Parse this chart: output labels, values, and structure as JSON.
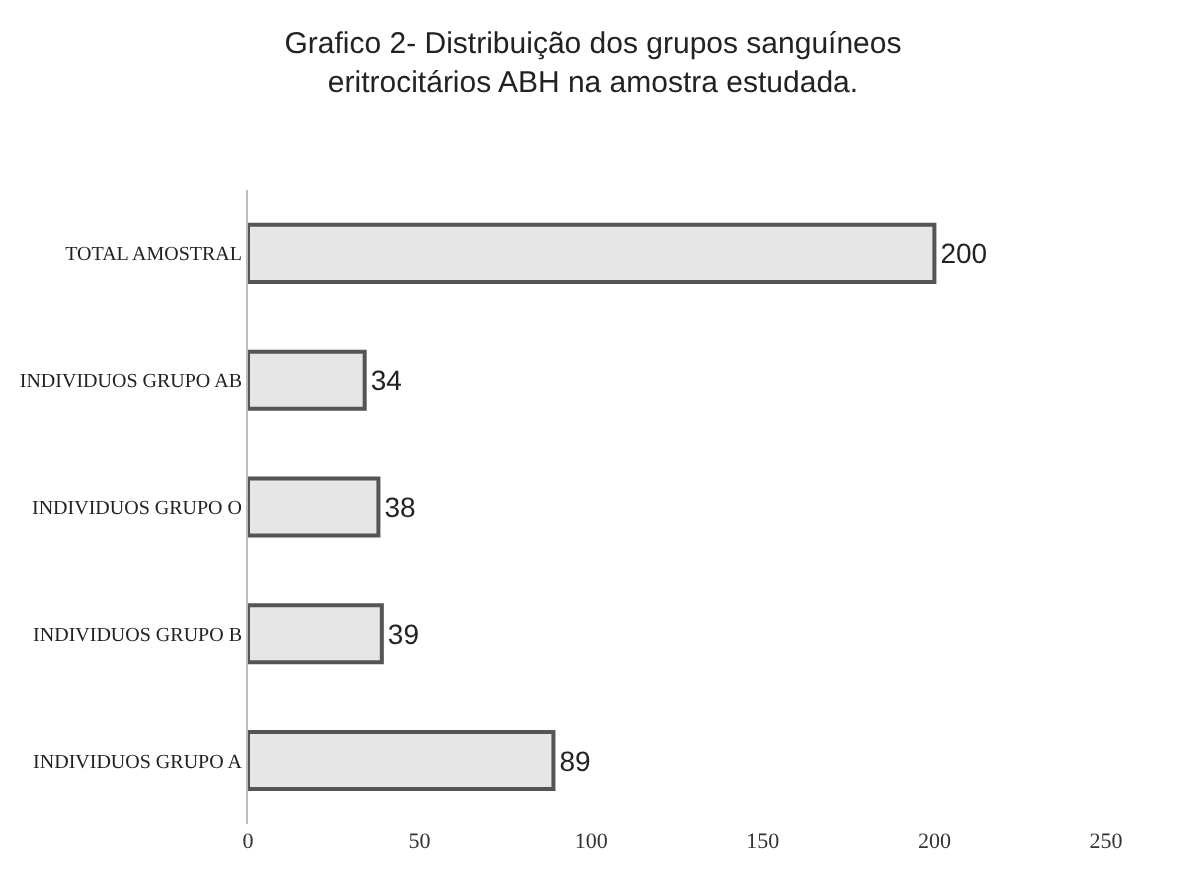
{
  "chart_data": {
    "type": "bar",
    "orientation": "horizontal",
    "title": "Grafico 2- Distribuição dos grupos sanguíneos\neritrocitários ABH na amostra estudada.",
    "categories": [
      "TOTAL AMOSTRAL",
      "INDIVIDUOS GRUPO AB",
      "INDIVIDUOS GRUPO O",
      "INDIVIDUOS GRUPO B",
      "INDIVIDUOS GRUPO A"
    ],
    "values": [
      200,
      34,
      38,
      39,
      89
    ],
    "color": "#e6e6e6",
    "data_labels": true,
    "xlim": [
      0,
      250
    ],
    "xticks": [
      0,
      50,
      100,
      150,
      200,
      250
    ],
    "legend": false
  }
}
